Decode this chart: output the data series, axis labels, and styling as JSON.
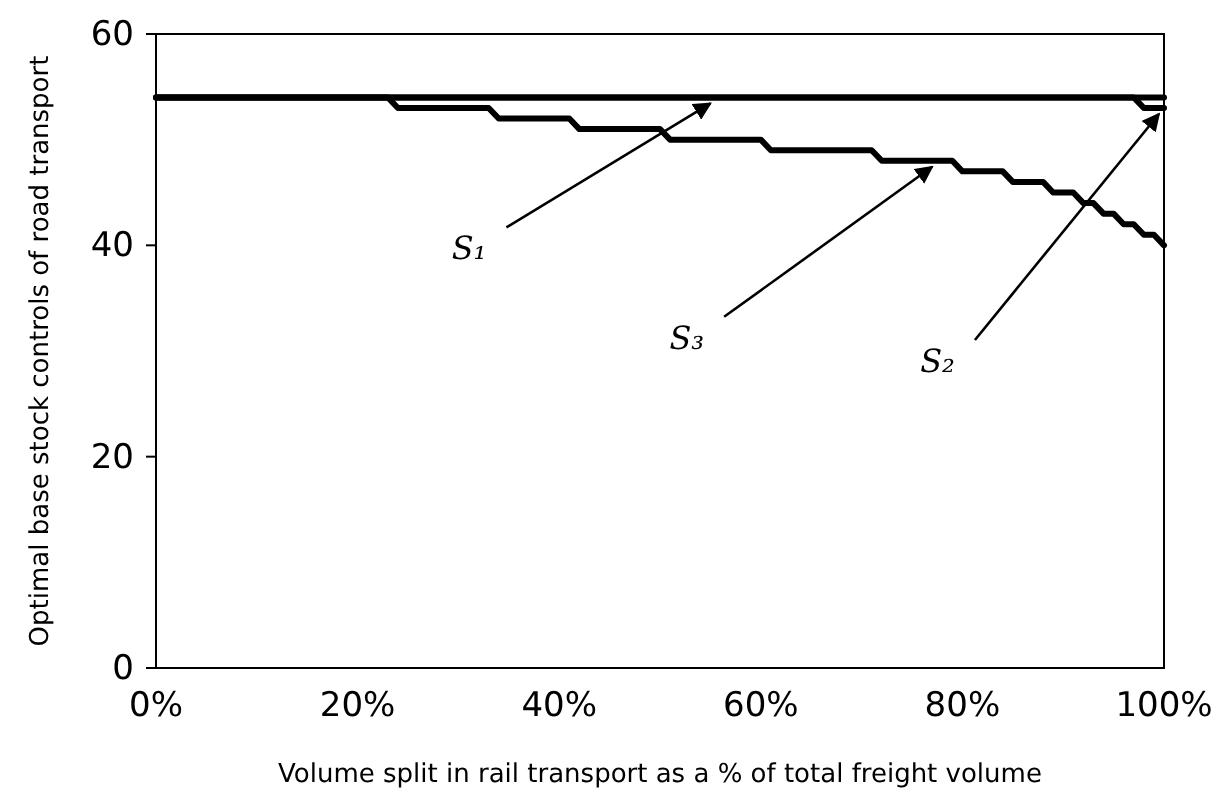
{
  "chart_data": {
    "type": "line",
    "xlabel": "Volume split in rail transport as a % of total freight volume",
    "ylabel": "Optimal base stock controls of road transport",
    "xlim": [
      0,
      100
    ],
    "xticks": [
      {
        "value": 0,
        "label": "0%"
      },
      {
        "value": 20,
        "label": "20%"
      },
      {
        "value": 40,
        "label": "40%"
      },
      {
        "value": 60,
        "label": "60%"
      },
      {
        "value": 80,
        "label": "80%"
      },
      {
        "value": 100,
        "label": "100%"
      }
    ],
    "ylim": [
      0,
      60
    ],
    "yticks": [
      0,
      20,
      40,
      60
    ],
    "grid": false,
    "marker": "none",
    "line_style": "solid",
    "series": [
      {
        "color": "#000000",
        "x": [
          0,
          100
        ],
        "values": [
          54,
          54
        ]
      },
      {
        "color": "#000000",
        "x": [
          0,
          97,
          98,
          100
        ],
        "values": [
          54,
          54,
          53,
          53
        ]
      },
      {
        "color": "#000000",
        "x": [
          0,
          23,
          24,
          33,
          34,
          41,
          42,
          50,
          51,
          60,
          61,
          71,
          72,
          79,
          80,
          84,
          85,
          88,
          89,
          91,
          92,
          93,
          94,
          95,
          96,
          97,
          98,
          99,
          100
        ],
        "values": [
          54,
          54,
          53,
          53,
          52,
          52,
          51,
          51,
          50,
          50,
          49,
          49,
          48,
          48,
          47,
          47,
          46,
          46,
          45,
          45,
          44,
          44,
          43,
          43,
          42,
          42,
          41,
          41,
          40
        ]
      }
    ],
    "annotations": [
      {
        "text": "S₁",
        "x": 55,
        "y": 54
      },
      {
        "text": "S₃",
        "x": 77,
        "y": 48
      },
      {
        "text": "S₂",
        "x": 99.5,
        "y": 53
      }
    ]
  }
}
